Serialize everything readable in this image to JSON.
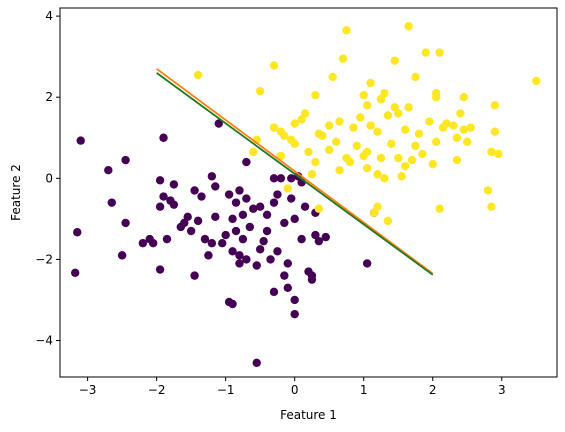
{
  "chart_data": {
    "type": "scatter",
    "title": "",
    "xlabel": "Feature 1",
    "ylabel": "Feature 2",
    "xlim": [
      -3.4,
      3.8
    ],
    "ylim": [
      -4.9,
      4.2
    ],
    "xticks": [
      -3,
      -2,
      -1,
      0,
      1,
      2,
      3
    ],
    "yticks": [
      -4,
      -2,
      0,
      2,
      4
    ],
    "grid": false,
    "legend": "none",
    "series": [
      {
        "class": 0,
        "color": "#440154",
        "points": [
          [
            -3.1,
            0.93
          ],
          [
            -3.15,
            -1.33
          ],
          [
            -3.18,
            -2.33
          ],
          [
            -2.7,
            0.2
          ],
          [
            -2.65,
            -0.6
          ],
          [
            -2.45,
            -1.1
          ],
          [
            -2.5,
            -1.9
          ],
          [
            -2.45,
            0.45
          ],
          [
            -2.2,
            -1.6
          ],
          [
            -2.1,
            -1.5
          ],
          [
            -2.05,
            -1.6
          ],
          [
            -1.95,
            -0.05
          ],
          [
            -1.95,
            -0.7
          ],
          [
            -1.9,
            -0.45
          ],
          [
            -1.85,
            -1.5
          ],
          [
            -1.95,
            -2.25
          ],
          [
            -1.9,
            1.0
          ],
          [
            -1.8,
            -0.55
          ],
          [
            -1.75,
            -0.15
          ],
          [
            -1.75,
            -0.65
          ],
          [
            -1.65,
            -1.2
          ],
          [
            -1.6,
            -1.1
          ],
          [
            -1.55,
            -0.95
          ],
          [
            -1.5,
            -1.3
          ],
          [
            -1.45,
            -2.4
          ],
          [
            -1.45,
            -0.3
          ],
          [
            -1.4,
            -1.05
          ],
          [
            -1.35,
            -0.45
          ],
          [
            -1.3,
            -1.5
          ],
          [
            -1.25,
            -1.9
          ],
          [
            -1.2,
            -1.6
          ],
          [
            -1.2,
            0.05
          ],
          [
            -1.15,
            -0.2
          ],
          [
            -1.15,
            -0.95
          ],
          [
            -1.1,
            1.35
          ],
          [
            -1.05,
            -1.6
          ],
          [
            -1.0,
            -1.4
          ],
          [
            -0.95,
            -0.4
          ],
          [
            -0.9,
            -1.8
          ],
          [
            -0.9,
            -1.0
          ],
          [
            -0.9,
            -3.1
          ],
          [
            -0.95,
            -3.05
          ],
          [
            -0.85,
            -1.3
          ],
          [
            -0.85,
            -0.6
          ],
          [
            -0.8,
            -0.3
          ],
          [
            -0.8,
            -1.9
          ],
          [
            -0.8,
            -2.1
          ],
          [
            -0.75,
            -0.9
          ],
          [
            -0.75,
            -1.5
          ],
          [
            -0.7,
            -0.5
          ],
          [
            -0.7,
            0.4
          ],
          [
            -0.7,
            -2.0
          ],
          [
            -0.65,
            -1.2
          ],
          [
            -0.6,
            -0.75
          ],
          [
            -0.55,
            -2.15
          ],
          [
            -0.5,
            -0.7
          ],
          [
            -0.55,
            -4.55
          ],
          [
            -0.5,
            -1.75
          ],
          [
            -0.45,
            -1.55
          ],
          [
            -0.4,
            -1.3
          ],
          [
            -0.4,
            -0.9
          ],
          [
            -0.35,
            -2.0
          ],
          [
            -0.3,
            -0.6
          ],
          [
            -0.3,
            -2.8
          ],
          [
            -0.3,
            0.0
          ],
          [
            -0.25,
            -1.8
          ],
          [
            -0.25,
            -0.4
          ],
          [
            -0.2,
            0.0
          ],
          [
            -0.15,
            -2.4
          ],
          [
            -0.15,
            -1.1
          ],
          [
            -0.1,
            -2.1
          ],
          [
            -0.1,
            -2.7
          ],
          [
            -0.05,
            -0.5
          ],
          [
            -0.05,
            0.0
          ],
          [
            0.0,
            -3.0
          ],
          [
            0.0,
            -1.0
          ],
          [
            0.05,
            0.05
          ],
          [
            0.0,
            -3.35
          ],
          [
            0.1,
            -1.5
          ],
          [
            0.15,
            -0.7
          ],
          [
            0.2,
            -2.3
          ],
          [
            0.25,
            -2.4
          ],
          [
            0.25,
            -2.5
          ],
          [
            0.3,
            -0.85
          ],
          [
            0.3,
            -1.4
          ],
          [
            0.35,
            -1.55
          ],
          [
            0.45,
            -1.45
          ],
          [
            1.05,
            -2.1
          ],
          [
            1.15,
            -0.85
          ],
          [
            0.1,
            -0.1
          ]
        ]
      },
      {
        "class": 1,
        "color": "#fde725",
        "points": [
          [
            -1.4,
            2.55
          ],
          [
            -0.6,
            0.65
          ],
          [
            -0.55,
            0.95
          ],
          [
            -0.5,
            2.15
          ],
          [
            -0.3,
            2.78
          ],
          [
            -0.3,
            1.25
          ],
          [
            -0.2,
            0.55
          ],
          [
            -0.2,
            1.15
          ],
          [
            -0.15,
            1.05
          ],
          [
            -0.1,
            -0.25
          ],
          [
            -0.05,
            0.95
          ],
          [
            0.0,
            0.85
          ],
          [
            0.0,
            1.35
          ],
          [
            0.1,
            1.45
          ],
          [
            0.15,
            1.6
          ],
          [
            0.2,
            0.65
          ],
          [
            0.25,
            0.1
          ],
          [
            0.3,
            0.4
          ],
          [
            0.3,
            2.05
          ],
          [
            0.35,
            1.1
          ],
          [
            0.35,
            -0.75
          ],
          [
            0.4,
            1.05
          ],
          [
            0.5,
            0.7
          ],
          [
            0.5,
            1.3
          ],
          [
            0.55,
            2.5
          ],
          [
            0.6,
            0.9
          ],
          [
            0.65,
            0.2
          ],
          [
            0.65,
            1.4
          ],
          [
            0.7,
            2.95
          ],
          [
            0.75,
            3.65
          ],
          [
            0.75,
            0.5
          ],
          [
            0.8,
            0.4
          ],
          [
            0.85,
            1.25
          ],
          [
            0.9,
            0.8
          ],
          [
            0.95,
            1.5
          ],
          [
            1.0,
            0.55
          ],
          [
            1.0,
            2.05
          ],
          [
            1.05,
            0.25
          ],
          [
            1.05,
            0.65
          ],
          [
            1.05,
            1.8
          ],
          [
            1.1,
            1.3
          ],
          [
            1.1,
            2.35
          ],
          [
            1.15,
            -0.85
          ],
          [
            1.2,
            -0.7
          ],
          [
            1.2,
            0.1
          ],
          [
            1.2,
            1.15
          ],
          [
            1.25,
            0.5
          ],
          [
            1.25,
            1.95
          ],
          [
            1.3,
            2.1
          ],
          [
            1.3,
            0.0
          ],
          [
            1.35,
            1.55
          ],
          [
            1.35,
            -1.05
          ],
          [
            1.4,
            0.85
          ],
          [
            1.45,
            1.75
          ],
          [
            1.45,
            2.9
          ],
          [
            1.5,
            1.6
          ],
          [
            1.5,
            0.5
          ],
          [
            1.55,
            0.05
          ],
          [
            1.6,
            1.2
          ],
          [
            1.6,
            0.3
          ],
          [
            1.65,
            1.75
          ],
          [
            1.65,
            3.75
          ],
          [
            1.7,
            0.45
          ],
          [
            1.75,
            0.8
          ],
          [
            1.75,
            2.5
          ],
          [
            1.8,
            1.1
          ],
          [
            1.85,
            0.6
          ],
          [
            1.9,
            3.1
          ],
          [
            1.95,
            1.4
          ],
          [
            2.0,
            0.35
          ],
          [
            2.05,
            2.0
          ],
          [
            2.05,
            0.9
          ],
          [
            2.1,
            3.1
          ],
          [
            2.1,
            -0.75
          ],
          [
            2.15,
            1.25
          ],
          [
            2.2,
            1.35
          ],
          [
            2.3,
            1.3
          ],
          [
            2.35,
            1.0
          ],
          [
            2.4,
            1.6
          ],
          [
            2.45,
            1.2
          ],
          [
            2.45,
            2.0
          ],
          [
            2.5,
            0.9
          ],
          [
            2.55,
            1.25
          ],
          [
            2.8,
            -0.3
          ],
          [
            2.85,
            0.65
          ],
          [
            2.85,
            -0.7
          ],
          [
            2.9,
            1.15
          ],
          [
            2.9,
            1.8
          ],
          [
            3.5,
            2.4
          ],
          [
            2.05,
            2.1
          ],
          [
            2.35,
            0.45
          ],
          [
            2.95,
            0.6
          ]
        ]
      }
    ],
    "lines": [
      {
        "color": "#ff7f0e",
        "x": [
          -2.0,
          2.0
        ],
        "y": [
          2.7,
          -2.35
        ]
      },
      {
        "color": "#1f7a1f",
        "x": [
          -2.0,
          2.0
        ],
        "y": [
          2.6,
          -2.38
        ]
      }
    ]
  }
}
